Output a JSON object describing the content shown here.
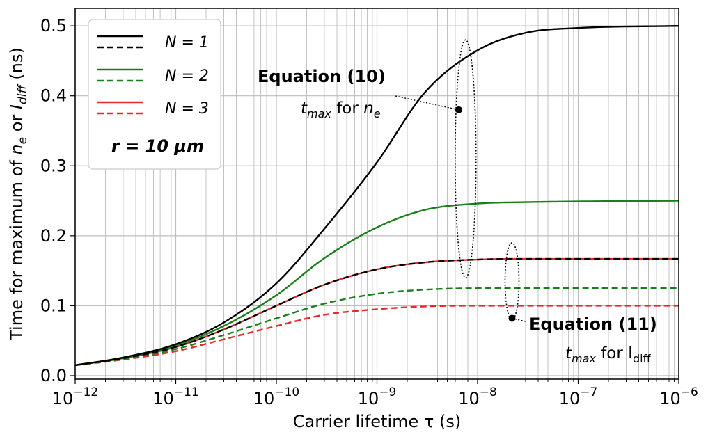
{
  "chart_data": {
    "type": "line",
    "x_scale": "log",
    "xlabel": "Carrier lifetime τ (s)",
    "ylabel_parts": [
      "Time for maximum of ",
      "n",
      "e",
      " or ",
      "I",
      "diff",
      " (ns)"
    ],
    "xlim": [
      1e-12,
      1e-06
    ],
    "ylim": [
      -0.005,
      0.525
    ],
    "x_ticks": [
      {
        "base": "10",
        "exp": "−12"
      },
      {
        "base": "10",
        "exp": "−11"
      },
      {
        "base": "10",
        "exp": "−10"
      },
      {
        "base": "10",
        "exp": "−9"
      },
      {
        "base": "10",
        "exp": "−8"
      },
      {
        "base": "10",
        "exp": "−7"
      },
      {
        "base": "10",
        "exp": "−6"
      }
    ],
    "y_ticks": [
      "0.0",
      "0.1",
      "0.2",
      "0.3",
      "0.4",
      "0.5"
    ],
    "grid": true,
    "legend_position": "top-left",
    "legend": [
      {
        "label": "N = 1",
        "color": "#000000"
      },
      {
        "label": "N = 2",
        "color": "#1a7f1a"
      },
      {
        "label": "N = 3",
        "color": "#e8282b"
      }
    ],
    "parameter_label": "r = 10 μm",
    "series": [
      {
        "name": "N = 1",
        "style": "solid",
        "color": "#000000",
        "x": [
          1e-12,
          3e-12,
          1e-11,
          3e-11,
          1e-10,
          3e-10,
          1e-09,
          3e-09,
          1e-08,
          3e-08,
          1e-07,
          1e-06
        ],
        "y": [
          0.015,
          0.026,
          0.045,
          0.076,
          0.132,
          0.21,
          0.305,
          0.405,
          0.465,
          0.49,
          0.497,
          0.5
        ]
      },
      {
        "name": "N = 1",
        "style": "dashed",
        "color": "#000000",
        "x": [
          1e-12,
          3e-12,
          1e-11,
          3e-11,
          1e-10,
          3e-10,
          1e-09,
          3e-09,
          1e-08,
          3e-08,
          1e-07,
          1e-06
        ],
        "y": [
          0.015,
          0.025,
          0.041,
          0.066,
          0.1,
          0.13,
          0.152,
          0.162,
          0.166,
          0.167,
          0.167,
          0.167
        ]
      },
      {
        "name": "N = 2",
        "style": "solid",
        "color": "#1a7f1a",
        "x": [
          1e-12,
          3e-12,
          1e-11,
          3e-11,
          1e-10,
          3e-10,
          1e-09,
          3e-09,
          1e-08,
          3e-08,
          1e-07,
          1e-06
        ],
        "y": [
          0.015,
          0.025,
          0.043,
          0.071,
          0.115,
          0.168,
          0.212,
          0.237,
          0.246,
          0.248,
          0.249,
          0.25
        ]
      },
      {
        "name": "N = 2",
        "style": "dashed",
        "color": "#1a7f1a",
        "x": [
          1e-12,
          3e-12,
          1e-11,
          3e-11,
          1e-10,
          3e-10,
          1e-09,
          3e-09,
          1e-08,
          3e-08,
          1e-07,
          1e-06
        ],
        "y": [
          0.015,
          0.024,
          0.038,
          0.058,
          0.082,
          0.103,
          0.117,
          0.123,
          0.125,
          0.125,
          0.125,
          0.125
        ]
      },
      {
        "name": "N = 3",
        "style": "solid",
        "color": "#e8282b",
        "x": [
          1e-12,
          3e-12,
          1e-11,
          3e-11,
          1e-10,
          3e-10,
          1e-09,
          3e-09,
          1e-08,
          3e-08,
          1e-07,
          1e-06
        ],
        "y": [
          0.015,
          0.025,
          0.041,
          0.066,
          0.1,
          0.13,
          0.152,
          0.162,
          0.166,
          0.167,
          0.167,
          0.167
        ]
      },
      {
        "name": "N = 3",
        "style": "dashed",
        "color": "#e8282b",
        "x": [
          1e-12,
          3e-12,
          1e-11,
          3e-11,
          1e-10,
          3e-10,
          1e-09,
          3e-09,
          1e-08,
          3e-08,
          1e-07,
          1e-06
        ],
        "y": [
          0.015,
          0.023,
          0.035,
          0.052,
          0.071,
          0.087,
          0.095,
          0.099,
          0.1,
          0.1,
          0.1,
          0.1
        ]
      }
    ],
    "annotations": [
      {
        "title": "Equation (10)",
        "var": "t",
        "sub": "max",
        "for": " for ",
        "what": "n",
        "what_sub": "e",
        "point": {
          "x": 6.5e-09,
          "y": 0.38
        }
      },
      {
        "title": "Equation (11)",
        "var": "t",
        "sub": "max",
        "for": " for ",
        "what": "I",
        "what_sub": "diff",
        "point": {
          "x": 2.2e-08,
          "y": 0.082
        }
      }
    ]
  }
}
